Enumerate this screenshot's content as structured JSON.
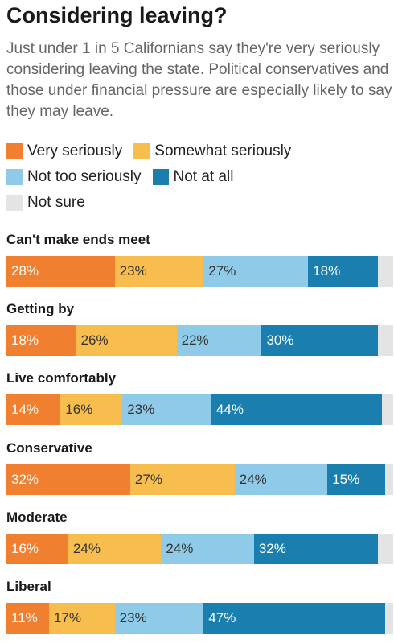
{
  "title": "Considering leaving?",
  "subtitle": "Just under 1 in 5 Californians say they're very seriously considering leaving the state. Political conservatives and those under financial pressure are especially likely to say they may leave.",
  "chart_data": {
    "type": "bar",
    "orientation": "horizontal",
    "stacked": true,
    "title": "Considering leaving?",
    "xlim": [
      0,
      100
    ],
    "legend_placement": "top",
    "categories": [
      "Can't make ends meet",
      "Getting by",
      "Live comfortably",
      "Conservative",
      "Moderate",
      "Liberal"
    ],
    "series": [
      {
        "name": "Very seriously",
        "color": "#f0802f",
        "text_color": "#ffffff",
        "values": [
          28,
          18,
          14,
          32,
          16,
          11
        ]
      },
      {
        "name": "Somewhat seriously",
        "color": "#f7bd4e",
        "text_color": "#333333",
        "values": [
          23,
          26,
          16,
          27,
          24,
          17
        ]
      },
      {
        "name": "Not too seriously",
        "color": "#8fcbe8",
        "text_color": "#333333",
        "values": [
          27,
          22,
          23,
          24,
          24,
          23
        ]
      },
      {
        "name": "Not at all",
        "color": "#1a7fae",
        "text_color": "#ffffff",
        "values": [
          18,
          30,
          44,
          15,
          32,
          47
        ]
      },
      {
        "name": "Not sure",
        "color": "#e4e4e4",
        "text_color": "#333333",
        "values": [
          4,
          4,
          3,
          2,
          4,
          2
        ]
      }
    ],
    "show_labels_for": [
      "Very seriously",
      "Somewhat seriously",
      "Not too seriously",
      "Not at all"
    ],
    "label_suffix": "%"
  },
  "legend_rows": [
    [
      0,
      1
    ],
    [
      2,
      3
    ],
    [
      4
    ]
  ]
}
